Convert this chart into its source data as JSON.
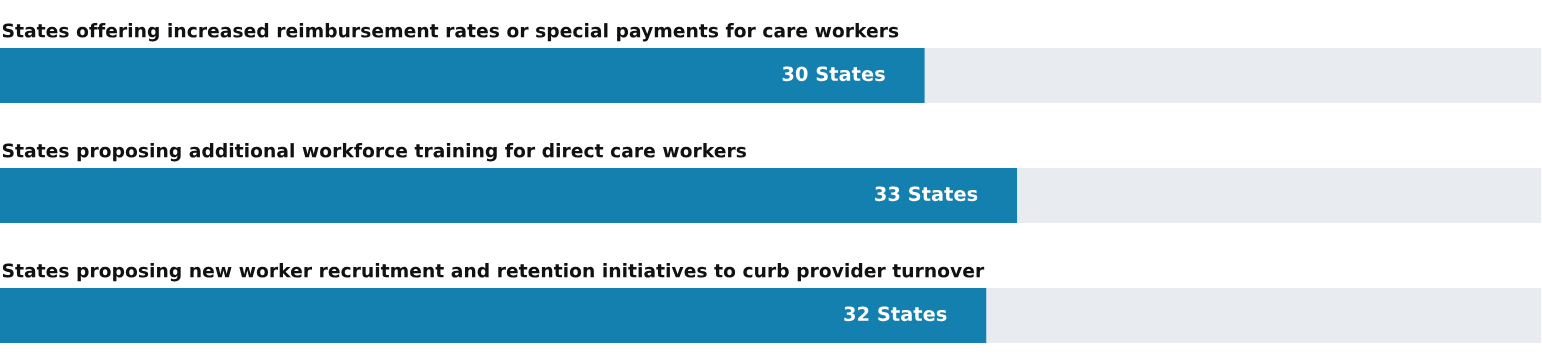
{
  "chart_data": {
    "type": "bar",
    "orientation": "horizontal",
    "categories": [
      "States offering increased reimbursement rates or special payments for care workers",
      "States proposing additional workforce training for direct care workers",
      "States proposing new worker recruitment and retention initiatives to curb provider turnover"
    ],
    "values": [
      30,
      33,
      32
    ],
    "value_labels": [
      "30 States",
      "33 States",
      "32 States"
    ],
    "color": "#1380b0",
    "xlim": [
      0,
      50
    ],
    "tick_labels": false,
    "legend": false
  }
}
